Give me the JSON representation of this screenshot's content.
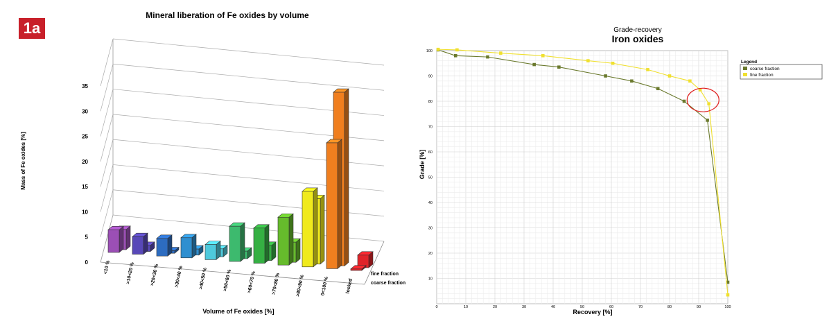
{
  "badge": "1a",
  "chart_data": [
    {
      "type": "bar",
      "title": "Mineral liberation of Fe oxides by volume",
      "xlabel": "Volume of Fe oxides [%]",
      "ylabel": "Mass of Fe oxides [%]",
      "ylim": [
        0,
        35
      ],
      "yticks": [
        "0",
        "5",
        "10",
        "15",
        "20",
        "25",
        "30",
        "35"
      ],
      "categories": [
        "<10 %",
        ">10<20 %",
        ">20<30 %",
        ">30<40 %",
        ">40<50 %",
        ">50<60 %",
        ">60<70 %",
        ">70<80 %",
        ">80<90 %",
        "0<100 %",
        "locked"
      ],
      "series": [
        {
          "name": "fine fraction",
          "values": [
            4.0,
            1.2,
            0.5,
            1.2,
            1.6,
            1.5,
            3.0,
            4.0,
            13.0,
            34.5,
            2.5
          ]
        },
        {
          "name": "coarse fraction",
          "values": [
            4.5,
            3.5,
            3.5,
            4.0,
            3.0,
            7.0,
            7.0,
            9.5,
            15.0,
            25.0,
            0.3
          ]
        }
      ],
      "colors": [
        "#9b4fb5",
        "#5848b8",
        "#2d6cc0",
        "#2f8fd0",
        "#4ec9dc",
        "#3dba6e",
        "#35b043",
        "#66bb2c",
        "#f0ea1c",
        "#f07f1f",
        "#e0242a"
      ],
      "grid": true,
      "legend": "depth-axis"
    },
    {
      "type": "line",
      "supertitle": "Grade-recovery",
      "title": "Iron oxides",
      "xlabel": "Recovery [%]",
      "ylabel": "Grade [%]",
      "xlim": [
        0,
        100
      ],
      "ylim": [
        0,
        100
      ],
      "xticks": [
        "0",
        "10",
        "20",
        "30",
        "40",
        "50",
        "60",
        "70",
        "80",
        "90",
        "100"
      ],
      "yticks": [
        "10",
        "20",
        "30",
        "40",
        "50",
        "60",
        "70",
        "80",
        "90",
        "100"
      ],
      "legend_title": "Legend",
      "legend": "right",
      "grid": true,
      "series": [
        {
          "name": "coarse fraction",
          "color": "#6b7a2e",
          "x": [
            0.5,
            6.5,
            17.5,
            33.5,
            42,
            58,
            67,
            76,
            85,
            93,
            100
          ],
          "y": [
            100.3,
            98,
            97.5,
            94.5,
            93.5,
            90,
            88,
            85,
            80,
            72.5,
            8.5
          ]
        },
        {
          "name": "fine fraction",
          "color": "#f0e030",
          "x": [
            0.5,
            7,
            22,
            36.5,
            52,
            60.5,
            72.5,
            80,
            87,
            90.5,
            93.5,
            100
          ],
          "y": [
            100.5,
            100.3,
            99,
            98,
            96,
            95,
            92.5,
            90,
            88,
            84.5,
            79,
            3.5
          ]
        }
      ],
      "highlight": {
        "x": 91.5,
        "y": 80.5
      }
    }
  ]
}
